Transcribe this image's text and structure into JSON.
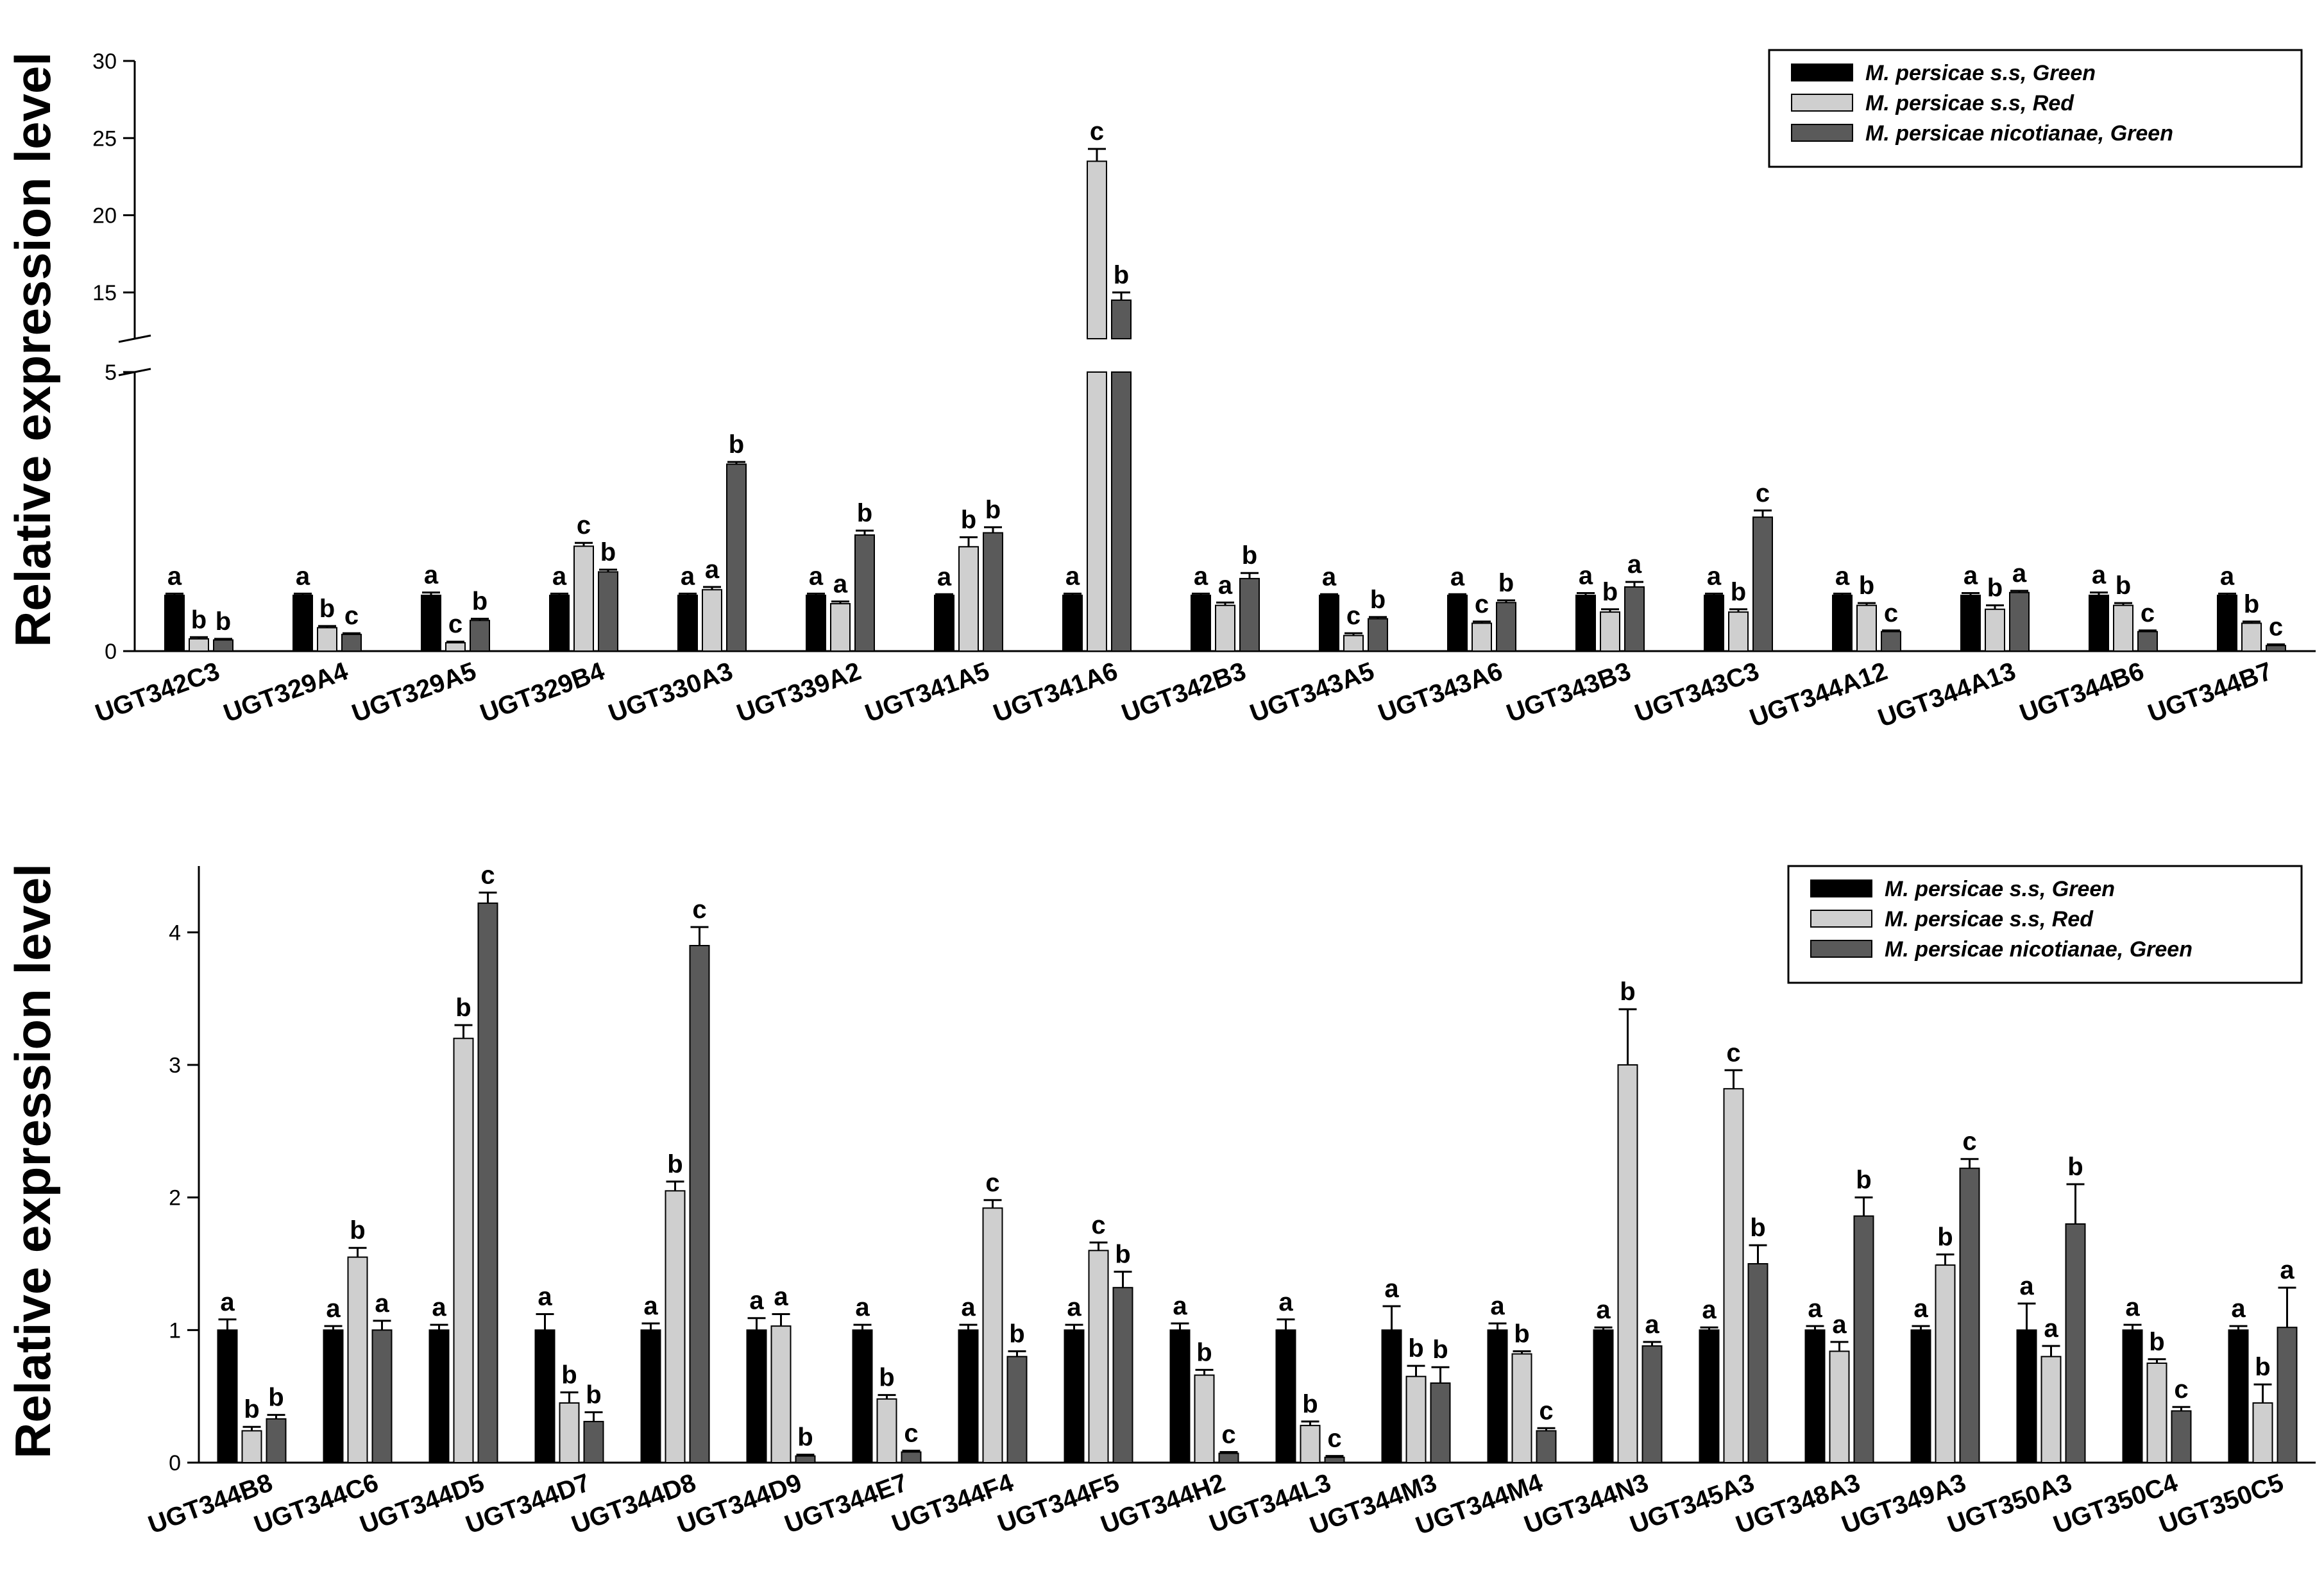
{
  "chart_data": [
    {
      "type": "bar",
      "ylabel": "Relative expression level",
      "y_axis_break": {
        "lower_range": [
          0,
          5
        ],
        "upper_range": [
          12,
          30
        ]
      },
      "yticks_lower": [
        "0",
        "5"
      ],
      "yticks_upper": [
        "15",
        "20",
        "25",
        "30"
      ],
      "legend_position": "top-right",
      "categories": [
        "UGT342C3",
        "UGT329A4",
        "UGT329A5",
        "UGT329B4",
        "UGT330A3",
        "UGT339A2",
        "UGT341A5",
        "UGT341A6",
        "UGT342B3",
        "UGT343A5",
        "UGT343A6",
        "UGT343B3",
        "UGT343C3",
        "UGT344A12",
        "UGT344A13",
        "UGT344B6",
        "UGT344B7"
      ],
      "series": [
        {
          "name": "M. persicae s.s, Green",
          "color": "#000000",
          "values": [
            1,
            1,
            1,
            1,
            1,
            1,
            1,
            1,
            1,
            1,
            1,
            1,
            1,
            1,
            1,
            1,
            1
          ],
          "errors": [
            0.03,
            0.03,
            0.05,
            0.03,
            0.03,
            0.03,
            0.02,
            0.03,
            0.03,
            0.02,
            0.02,
            0.04,
            0.03,
            0.03,
            0.04,
            0.05,
            0.03
          ],
          "labels": [
            "a",
            "a",
            "a",
            "a",
            "a",
            "a",
            "a",
            "a",
            "a",
            "a",
            "a",
            "a",
            "a",
            "a",
            "a",
            "a",
            "a"
          ]
        },
        {
          "name": "M. persicae s.s, Red",
          "color": "#cfcfcf",
          "values": [
            0.22,
            0.42,
            0.15,
            1.88,
            1.1,
            0.85,
            1.87,
            23.5,
            0.82,
            0.28,
            0.5,
            0.7,
            0.7,
            0.82,
            0.75,
            0.82,
            0.5
          ],
          "errors": [
            0.03,
            0.03,
            0.02,
            0.06,
            0.05,
            0.04,
            0.17,
            0.8,
            0.05,
            0.04,
            0.03,
            0.05,
            0.05,
            0.04,
            0.07,
            0.04,
            0.03
          ],
          "labels": [
            "b",
            "b",
            "c",
            "c",
            "a",
            "a",
            "b",
            "c",
            "a",
            "c",
            "c",
            "b",
            "b",
            "b",
            "b",
            "b",
            "b"
          ]
        },
        {
          "name": "M. persicae nicotianae, Green",
          "color": "#5a5a5a",
          "values": [
            0.2,
            0.3,
            0.55,
            1.42,
            3.35,
            2.08,
            2.12,
            14.5,
            1.3,
            0.58,
            0.87,
            1.15,
            2.4,
            0.35,
            1.05,
            0.35,
            0.1
          ],
          "errors": [
            0.02,
            0.02,
            0.03,
            0.04,
            0.04,
            0.08,
            0.1,
            0.5,
            0.1,
            0.03,
            0.04,
            0.09,
            0.12,
            0.02,
            0.03,
            0.02,
            0.02
          ],
          "labels": [
            "b",
            "c",
            "b",
            "b",
            "b",
            "b",
            "b",
            "b",
            "b",
            "b",
            "b",
            "a",
            "c",
            "c",
            "a",
            "c",
            "c"
          ]
        }
      ]
    },
    {
      "type": "bar",
      "ylabel": "Relative expression level",
      "ylim": [
        0,
        4.5
      ],
      "yticks": [
        "0",
        "1",
        "2",
        "3",
        "4"
      ],
      "legend_position": "top-right",
      "categories": [
        "UGT344B8",
        "UGT344C6",
        "UGT344D5",
        "UGT344D7",
        "UGT344D8",
        "UGT344D9",
        "UGT344E7",
        "UGT344F4",
        "UGT344F5",
        "UGT344H2",
        "UGT344L3",
        "UGT344M3",
        "UGT344M4",
        "UGT344N3",
        "UGT345A3",
        "UGT348A3",
        "UGT349A3",
        "UGT350A3",
        "UGT350C4",
        "UGT350C5"
      ],
      "series": [
        {
          "name": "M. persicae s.s, Green",
          "color": "#000000",
          "values": [
            1,
            1,
            1,
            1,
            1,
            1,
            1,
            1,
            1,
            1,
            1,
            1,
            1,
            1,
            1,
            1,
            1,
            1,
            1,
            1
          ],
          "errors": [
            0.08,
            0.03,
            0.04,
            0.12,
            0.05,
            0.09,
            0.04,
            0.04,
            0.04,
            0.05,
            0.08,
            0.18,
            0.05,
            0.02,
            0.02,
            0.03,
            0.03,
            0.2,
            0.04,
            0.03
          ],
          "labels": [
            "a",
            "a",
            "a",
            "a",
            "a",
            "a",
            "a",
            "a",
            "a",
            "a",
            "a",
            "a",
            "a",
            "a",
            "a",
            "a",
            "a",
            "a",
            "a",
            "a"
          ]
        },
        {
          "name": "M. persicae s.s, Red",
          "color": "#cfcfcf",
          "values": [
            0.24,
            1.55,
            3.2,
            0.45,
            2.05,
            1.03,
            0.48,
            1.92,
            1.6,
            0.66,
            0.28,
            0.65,
            0.82,
            3.0,
            2.82,
            0.84,
            1.49,
            0.8,
            0.75,
            0.45
          ],
          "errors": [
            0.03,
            0.07,
            0.1,
            0.08,
            0.07,
            0.09,
            0.03,
            0.06,
            0.06,
            0.04,
            0.03,
            0.08,
            0.02,
            0.42,
            0.14,
            0.07,
            0.08,
            0.08,
            0.03,
            0.14
          ],
          "labels": [
            "b",
            "b",
            "b",
            "b",
            "b",
            "a",
            "b",
            "c",
            "c",
            "b",
            "b",
            "b",
            "b",
            "b",
            "c",
            "a",
            "b",
            "a",
            "b",
            "b"
          ]
        },
        {
          "name": "M. persicae nicotianae, Green",
          "color": "#5a5a5a",
          "values": [
            0.33,
            1.0,
            4.22,
            0.31,
            3.9,
            0.05,
            0.08,
            0.8,
            1.32,
            0.07,
            0.04,
            0.6,
            0.24,
            0.88,
            1.5,
            1.86,
            2.22,
            1.8,
            0.39,
            1.02
          ],
          "errors": [
            0.03,
            0.07,
            0.08,
            0.07,
            0.14,
            0.01,
            0.01,
            0.04,
            0.12,
            0.01,
            0.01,
            0.12,
            0.02,
            0.03,
            0.14,
            0.14,
            0.07,
            0.3,
            0.03,
            0.3
          ],
          "labels": [
            "b",
            "a",
            "c",
            "b",
            "c",
            "b",
            "c",
            "b",
            "b",
            "c",
            "c",
            "b",
            "c",
            "a",
            "b",
            "b",
            "c",
            "b",
            "c",
            "a"
          ]
        }
      ]
    }
  ]
}
